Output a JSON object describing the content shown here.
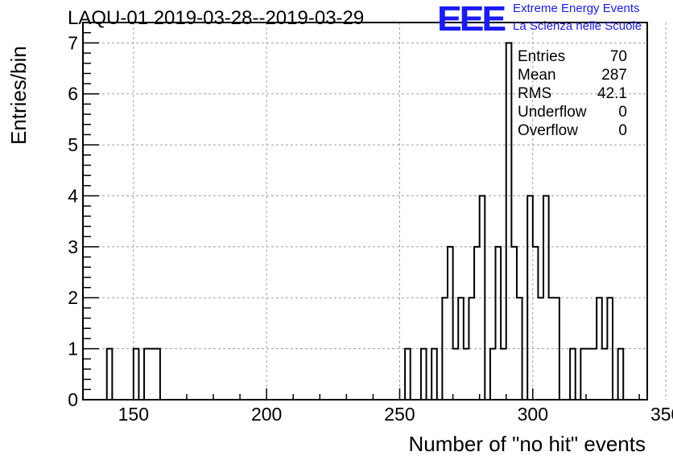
{
  "header": {
    "title": "LAQU-01 2019-03-28--2019-03-29",
    "logo_text": "EEE",
    "logo_line1": "Extreme Energy Events",
    "logo_line2": "La Scienza nelle Scuole"
  },
  "colors": {
    "logo": "#1a1aff",
    "line": "#000000",
    "grid": "#a0a0a0"
  },
  "stats": [
    {
      "label": "Entries",
      "value": "70"
    },
    {
      "label": "Mean",
      "value": "287"
    },
    {
      "label": "RMS",
      "value": "42.1"
    },
    {
      "label": "Underflow",
      "value": "0"
    },
    {
      "label": "Overflow",
      "value": "0"
    }
  ],
  "chart_data": {
    "type": "histogram",
    "title": "LAQU-01 2019-03-28--2019-03-29",
    "xlabel": "Number of \"no hit\" events",
    "ylabel": "Entries/bin",
    "xlim": [
      131,
      343
    ],
    "ylim": [
      0,
      7.4
    ],
    "grid": true,
    "x_ticks": [
      150,
      200,
      250,
      300,
      350
    ],
    "x_tick_labels": [
      "150",
      "200",
      "250",
      "300",
      "350"
    ],
    "y_ticks": [
      0,
      1,
      2,
      3,
      4,
      5,
      6,
      7
    ],
    "y_tick_labels": [
      "0",
      "1",
      "2",
      "3",
      "4",
      "5",
      "6",
      "7"
    ],
    "bin_width": 2,
    "bin_edges_start": 140,
    "counts": [
      1,
      0,
      0,
      0,
      0,
      1,
      0,
      1,
      1,
      1,
      0,
      0,
      0,
      0,
      0,
      0,
      0,
      0,
      0,
      0,
      0,
      0,
      0,
      0,
      0,
      0,
      0,
      0,
      0,
      0,
      0,
      0,
      0,
      0,
      0,
      0,
      0,
      0,
      0,
      0,
      0,
      0,
      0,
      0,
      0,
      0,
      0,
      0,
      0,
      0,
      0,
      0,
      0,
      0,
      0,
      0,
      1,
      0,
      0,
      1,
      0,
      1,
      0,
      2,
      3,
      1,
      2,
      1,
      2,
      3,
      4,
      0,
      1,
      3,
      1,
      7,
      3,
      2,
      0,
      4,
      3,
      2,
      4,
      2,
      2,
      0,
      0,
      1,
      0,
      1,
      1,
      1,
      2,
      1,
      2,
      0,
      1
    ]
  }
}
